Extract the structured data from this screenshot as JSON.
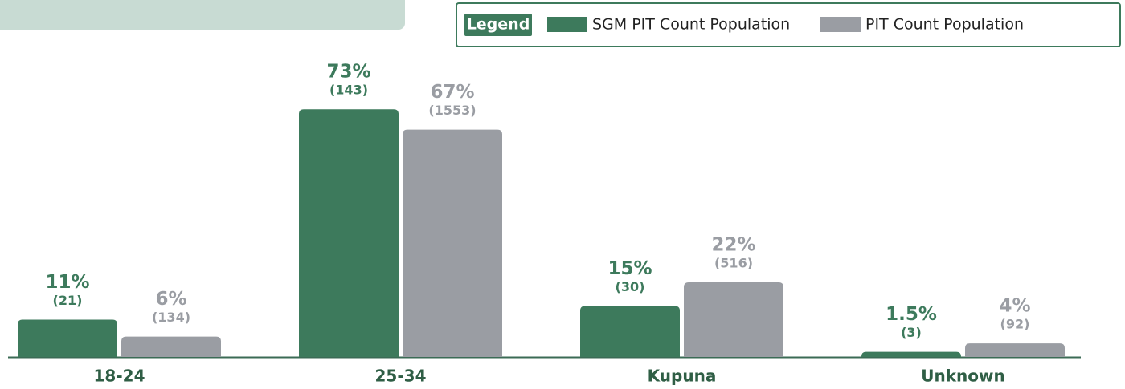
{
  "chart_data": {
    "type": "bar",
    "legend_title": "Legend",
    "categories": [
      "18-24",
      "25-34",
      "Kupuna",
      "Unknown"
    ],
    "series": [
      {
        "name": "SGM PIT Count Population",
        "color": "#3d7a5c",
        "values": [
          11,
          73,
          15,
          1.5
        ],
        "value_labels": [
          "11%",
          "73%",
          "15%",
          "1.5%"
        ],
        "count_labels": [
          "(21)",
          "(143)",
          "(30)",
          "(3)"
        ]
      },
      {
        "name": "PIT Count Population",
        "color": "#9a9da3",
        "values": [
          6,
          67,
          22,
          4
        ],
        "value_labels": [
          "6%",
          "67%",
          "22%",
          "4%"
        ],
        "count_labels": [
          "(134)",
          "(1553)",
          "(516)",
          "(92)"
        ]
      }
    ]
  }
}
